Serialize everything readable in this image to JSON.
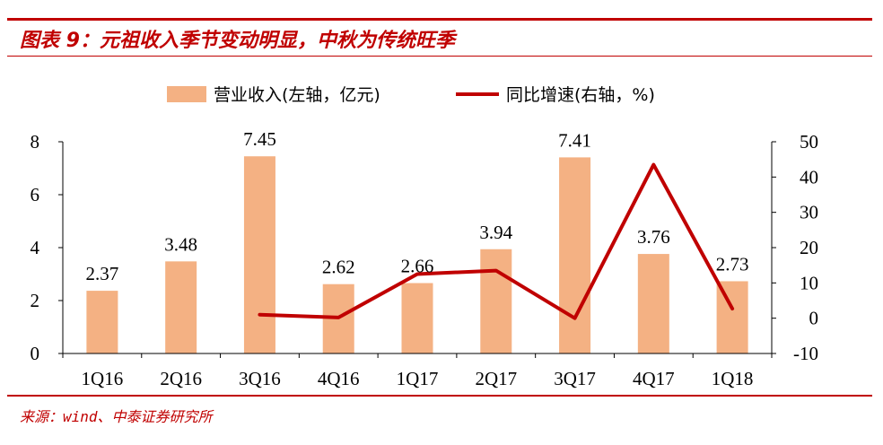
{
  "header": {
    "title": "图表 9：元祖收入季节变动明显，中秋为传统旺季"
  },
  "footer": {
    "source": "来源：wind、中泰证券研究所"
  },
  "colors": {
    "accent": "#c00000",
    "bar": "#f4b183",
    "line": "#c00000"
  },
  "chart_data": {
    "type": "bar",
    "categories": [
      "1Q16",
      "2Q16",
      "3Q16",
      "4Q16",
      "1Q17",
      "2Q17",
      "3Q17",
      "4Q17",
      "1Q18"
    ],
    "series": [
      {
        "name": "营业收入(左轴，亿元)",
        "type": "bar",
        "axis": "left",
        "values": [
          2.37,
          3.48,
          7.45,
          2.62,
          2.66,
          3.94,
          7.41,
          3.76,
          2.73
        ],
        "data_labels": [
          "2.37",
          "3.48",
          "7.45",
          "2.62",
          "2.66",
          "3.94",
          "7.41",
          "3.76",
          "2.73"
        ]
      },
      {
        "name": "同比增速(右轴，%)",
        "type": "line",
        "axis": "right",
        "values": [
          null,
          null,
          1.0,
          0.2,
          12.5,
          13.5,
          0.0,
          43.5,
          2.7
        ]
      }
    ],
    "y_left": {
      "min": 0,
      "max": 8,
      "ticks": [
        "0",
        "2",
        "4",
        "6",
        "8"
      ]
    },
    "y_right": {
      "min": -10,
      "max": 50,
      "ticks": [
        "-10",
        "0",
        "10",
        "20",
        "30",
        "40",
        "50"
      ]
    },
    "legend_position": "top",
    "grid": false
  }
}
